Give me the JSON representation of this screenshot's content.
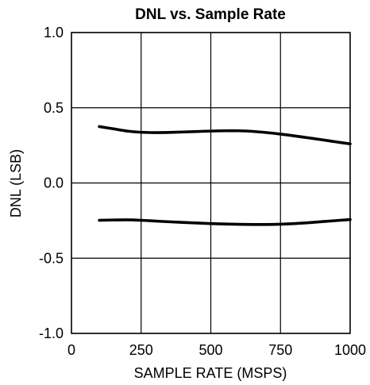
{
  "chart_data": {
    "type": "line",
    "title": "DNL vs. Sample Rate",
    "xlabel": "SAMPLE RATE (MSPS)",
    "ylabel": "DNL (LSB)",
    "xlim": [
      0,
      1000
    ],
    "ylim": [
      -1.0,
      1.0
    ],
    "x_ticks": [
      0,
      250,
      500,
      750,
      1000
    ],
    "x_tick_labels": [
      "0",
      "250",
      "500",
      "750",
      "1000"
    ],
    "y_ticks": [
      -1.0,
      -0.5,
      0.0,
      0.5,
      1.0
    ],
    "y_tick_labels": [
      "-1.0",
      "-0.5",
      "0.0",
      "0.5",
      "1.0"
    ],
    "grid": true,
    "legend": "none",
    "line_color": "#000000",
    "series": [
      {
        "x": [
          100,
          150,
          200,
          250,
          300,
          350,
          400,
          450,
          500,
          550,
          600,
          650,
          700,
          750,
          800,
          850,
          900,
          950,
          1000
        ],
        "values": [
          0.375,
          0.36,
          0.345,
          0.337,
          0.335,
          0.336,
          0.339,
          0.342,
          0.345,
          0.347,
          0.347,
          0.343,
          0.335,
          0.325,
          0.313,
          0.3,
          0.287,
          0.273,
          0.26
        ]
      },
      {
        "x": [
          100,
          150,
          200,
          250,
          300,
          350,
          400,
          450,
          500,
          550,
          600,
          650,
          700,
          750,
          800,
          850,
          900,
          950,
          1000
        ],
        "values": [
          -0.248,
          -0.246,
          -0.245,
          -0.248,
          -0.253,
          -0.258,
          -0.262,
          -0.266,
          -0.27,
          -0.273,
          -0.275,
          -0.276,
          -0.276,
          -0.274,
          -0.27,
          -0.264,
          -0.257,
          -0.25,
          -0.243
        ]
      }
    ]
  }
}
